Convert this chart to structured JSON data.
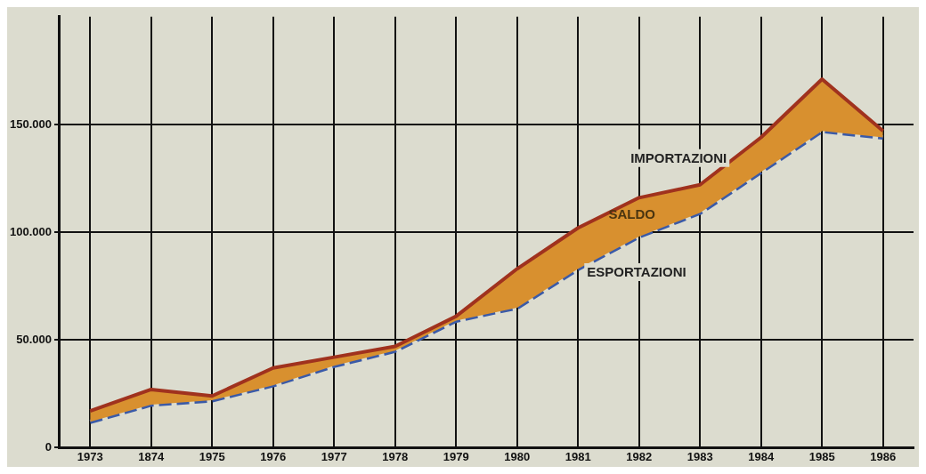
{
  "chart_data": {
    "type": "area",
    "categories": [
      "1973",
      "1874",
      "1975",
      "1976",
      "1977",
      "1978",
      "1979",
      "1980",
      "1981",
      "1982",
      "1983",
      "1984",
      "1985",
      "1986"
    ],
    "series": [
      {
        "name": "IMPORTAZIONI",
        "color": "#a0321e",
        "values": [
          17000,
          27000,
          24000,
          37000,
          42000,
          47000,
          61000,
          83000,
          102000,
          116000,
          122000,
          144000,
          171000,
          147000
        ],
        "line_style": "solid"
      },
      {
        "name": "ESPORTAZIONI",
        "color": "#3a5aa8",
        "values": [
          12000,
          20000,
          22000,
          29000,
          38000,
          45000,
          59000,
          65000,
          83000,
          98000,
          109000,
          128000,
          147000,
          144000
        ],
        "line_style": "dashed",
        "type": "line"
      }
    ],
    "annotations": [
      "SALDO"
    ],
    "ylim": [
      0,
      200000
    ],
    "yticks": [
      0,
      {
        "value": 50000,
        "label": "50.000"
      },
      {
        "value": 100000,
        "label": "100.000"
      },
      {
        "value": 150000,
        "label": "150.000"
      }
    ],
    "grid": true,
    "marker": "none"
  }
}
